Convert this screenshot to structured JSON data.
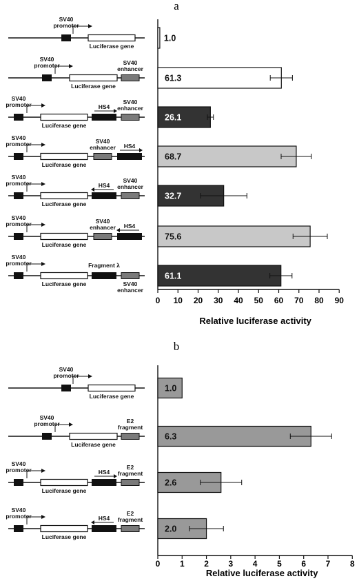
{
  "chart_data": [
    {
      "panel": "a",
      "type": "bar",
      "orientation": "horizontal",
      "xlabel": "Relative luciferase activity",
      "xlim": [
        0,
        90
      ],
      "xticks": [
        "0",
        "10",
        "20",
        "30",
        "40",
        "50",
        "60",
        "70",
        "80",
        "90"
      ],
      "categories": [
        {
          "labels": {
            "promoter": "SV40\npromoter",
            "gene": "Luciferase gene"
          }
        },
        {
          "labels": {
            "promoter": "SV40\npromoter",
            "gene": "Luciferase gene",
            "enhancer": "SV40\nenhancer"
          }
        },
        {
          "labels": {
            "promoter": "SV40\npromoter",
            "gene": "Luciferase gene",
            "hs4": "HS4",
            "enhancer": "SV40\nenhancer"
          }
        },
        {
          "labels": {
            "promoter": "SV40\npromoter",
            "gene": "Luciferase gene",
            "enhancer": "SV40\nenhancer",
            "hs4": "HS4"
          }
        },
        {
          "labels": {
            "promoter": "SV40\npromoter",
            "gene": "Luciferase gene",
            "hs4": "HS4",
            "enhancer": "SV40\nenhancer"
          }
        },
        {
          "labels": {
            "promoter": "SV40\npromoter",
            "gene": "Luciferase gene",
            "enhancer": "SV40\nenhancer",
            "hs4": "HS4"
          }
        },
        {
          "labels": {
            "promoter": "SV40\npromoter",
            "gene": "Luciferase gene",
            "fragment": "Fragment λ",
            "enhancer": "SV40\nenhancer"
          }
        }
      ],
      "values": [
        1.0,
        61.3,
        26.1,
        68.7,
        32.7,
        75.6,
        61.1
      ],
      "value_labels": [
        "1.0",
        "61.3",
        "26.1",
        "68.7",
        "32.7",
        "75.6",
        "61.1"
      ],
      "errors": [
        0,
        5.5,
        1.5,
        7.5,
        11.5,
        8.5,
        5.5
      ],
      "bar_colors": [
        "#ffffff",
        "#ffffff",
        "#333333",
        "#c8c8c8",
        "#333333",
        "#c8c8c8",
        "#333333"
      ],
      "label_colors": [
        "#111111",
        "#111111",
        "#ffffff",
        "#111111",
        "#ffffff",
        "#111111",
        "#ffffff"
      ]
    },
    {
      "panel": "b",
      "type": "bar",
      "orientation": "horizontal",
      "xlabel": "Relative luciferase activity",
      "xlim": [
        0,
        8
      ],
      "xticks": [
        "0",
        "1",
        "2",
        "3",
        "4",
        "5",
        "6",
        "7",
        "8"
      ],
      "categories": [
        {
          "labels": {
            "promoter": "SV40\npromoter",
            "gene": "Luciferase gene"
          }
        },
        {
          "labels": {
            "promoter": "SV40\npromoter",
            "gene": "Luciferase gene",
            "e2": "E2\nfragment"
          }
        },
        {
          "labels": {
            "promoter": "SV40\npromoter",
            "gene": "Luciferase gene",
            "hs4": "HS4",
            "e2": "E2\nfragment"
          }
        },
        {
          "labels": {
            "promoter": "SV40\npromoter",
            "gene": "Luciferase gene",
            "hs4": "HS4",
            "e2": "E2\nfragment"
          }
        }
      ],
      "values": [
        1.0,
        6.3,
        2.6,
        2.0
      ],
      "value_labels": [
        "1.0",
        "6.3",
        "2.6",
        "2.0"
      ],
      "errors": [
        0,
        0.85,
        0.85,
        0.7
      ],
      "bar_colors": [
        "#999999",
        "#999999",
        "#999999",
        "#999999"
      ],
      "label_colors": [
        "#111111",
        "#111111",
        "#111111",
        "#111111"
      ]
    }
  ],
  "colors": {
    "dark": "#111111",
    "enhancer_gray": "#7a7a7a"
  }
}
